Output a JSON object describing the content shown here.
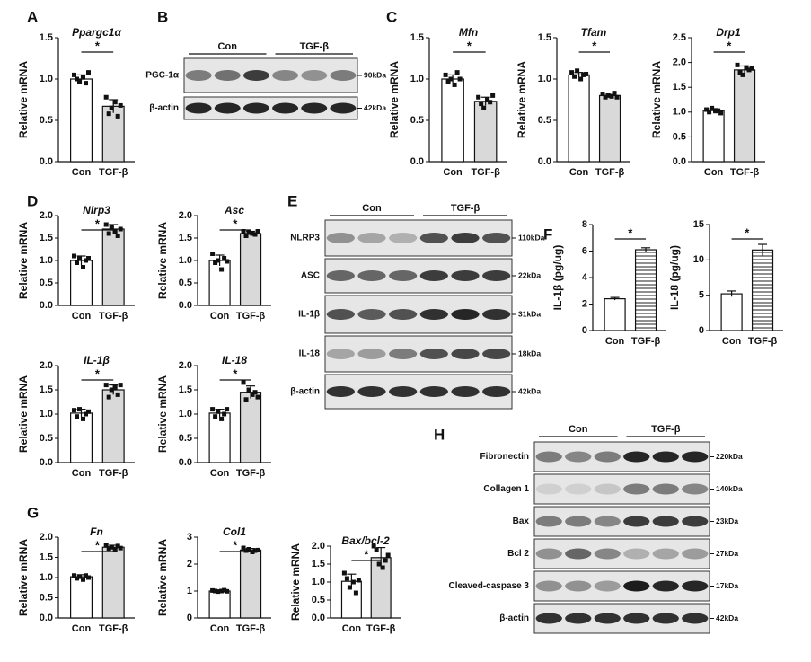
{
  "panel_labels": [
    "A",
    "B",
    "C",
    "D",
    "E",
    "F",
    "G",
    "H"
  ],
  "chart_data": [
    {
      "type": "bar",
      "title": "Ppargc1α",
      "ylabel": "Relative mRNA",
      "categories": [
        "Con",
        "TGF-β"
      ],
      "values": [
        1.0,
        0.67
      ],
      "errors": [
        0.05,
        0.08
      ],
      "points": [
        [
          1.05,
          1.0,
          0.97,
          1.02,
          0.95,
          1.08
        ],
        [
          0.78,
          0.58,
          0.65,
          0.72,
          0.55,
          0.68
        ]
      ],
      "colors": [
        "#ffffff",
        "#d9d9d9"
      ],
      "significance": "*",
      "ylim": [
        0,
        1.5
      ],
      "yticks": [
        {
          "value": 0,
          "label": "0.0"
        },
        {
          "value": 0.5,
          "label": "0.5"
        },
        {
          "value": 1,
          "label": "1.0"
        },
        {
          "value": 1.5,
          "label": "1.5"
        }
      ]
    },
    {
      "type": "bar",
      "title": "Mfn",
      "ylabel": "Relative mRNA",
      "categories": [
        "Con",
        "TGF-β"
      ],
      "values": [
        1.0,
        0.73
      ],
      "errors": [
        0.05,
        0.05
      ],
      "points": [
        [
          1.05,
          0.97,
          1.0,
          0.93,
          1.08,
          1.0
        ],
        [
          0.78,
          0.7,
          0.65,
          0.75,
          0.72,
          0.8
        ]
      ],
      "colors": [
        "#ffffff",
        "#d9d9d9"
      ],
      "significance": "*",
      "ylim": [
        0,
        1.5
      ],
      "yticks": [
        {
          "value": 0,
          "label": "0.0"
        },
        {
          "value": 0.5,
          "label": "0.5"
        },
        {
          "value": 1,
          "label": "1.0"
        },
        {
          "value": 1.5,
          "label": "1.5"
        }
      ]
    },
    {
      "type": "bar",
      "title": "Tfam",
      "ylabel": "Relative mRNA",
      "categories": [
        "Con",
        "TGF-β"
      ],
      "values": [
        1.05,
        0.8
      ],
      "errors": [
        0.03,
        0.03
      ],
      "points": [
        [
          1.08,
          1.03,
          1.1,
          1.0,
          1.05,
          1.06
        ],
        [
          0.82,
          0.78,
          0.8,
          0.79,
          0.83,
          0.78
        ]
      ],
      "colors": [
        "#ffffff",
        "#d9d9d9"
      ],
      "significance": "*",
      "ylim": [
        0,
        1.5
      ],
      "yticks": [
        {
          "value": 0,
          "label": "0.0"
        },
        {
          "value": 0.5,
          "label": "0.5"
        },
        {
          "value": 1,
          "label": "1.0"
        },
        {
          "value": 1.5,
          "label": "1.5"
        }
      ]
    },
    {
      "type": "bar",
      "title": "Drp1",
      "ylabel": "Relative mRNA",
      "categories": [
        "Con",
        "TGF-β"
      ],
      "values": [
        1.03,
        1.85
      ],
      "errors": [
        0.04,
        0.08
      ],
      "points": [
        [
          1.05,
          1.0,
          1.08,
          1.02,
          1.03,
          0.98
        ],
        [
          1.95,
          1.8,
          1.75,
          1.9,
          1.85,
          1.88
        ]
      ],
      "colors": [
        "#ffffff",
        "#d9d9d9"
      ],
      "significance": "*",
      "ylim": [
        0,
        2.5
      ],
      "yticks": [
        {
          "value": 0,
          "label": "0.0"
        },
        {
          "value": 0.5,
          "label": "0.5"
        },
        {
          "value": 1,
          "label": "1.0"
        },
        {
          "value": 1.5,
          "label": "1.5"
        },
        {
          "value": 2,
          "label": "2.0"
        },
        {
          "value": 2.5,
          "label": "2.5"
        }
      ]
    },
    {
      "type": "bar",
      "title": "Nlrp3",
      "ylabel": "Relative mRNA",
      "categories": [
        "Con",
        "TGF-β"
      ],
      "values": [
        1.0,
        1.7
      ],
      "errors": [
        0.1,
        0.1
      ],
      "points": [
        [
          1.1,
          0.95,
          1.05,
          0.85,
          1.0,
          1.05
        ],
        [
          1.8,
          1.6,
          1.75,
          1.65,
          1.55,
          1.7
        ]
      ],
      "colors": [
        "#ffffff",
        "#d9d9d9"
      ],
      "significance": "*",
      "ylim": [
        0,
        2
      ],
      "yticks": [
        {
          "value": 0,
          "label": "0.0"
        },
        {
          "value": 0.5,
          "label": "0.5"
        },
        {
          "value": 1,
          "label": "1.0"
        },
        {
          "value": 1.5,
          "label": "1.5"
        },
        {
          "value": 2,
          "label": "2.0"
        }
      ]
    },
    {
      "type": "bar",
      "title": "Asc",
      "ylabel": "Relative mRNA",
      "categories": [
        "Con",
        "TGF-β"
      ],
      "values": [
        1.0,
        1.6
      ],
      "errors": [
        0.12,
        0.05
      ],
      "points": [
        [
          1.15,
          0.95,
          1.0,
          0.8,
          1.05,
          0.98
        ],
        [
          1.65,
          1.55,
          1.62,
          1.6,
          1.58,
          1.65
        ]
      ],
      "colors": [
        "#ffffff",
        "#d9d9d9"
      ],
      "significance": "*",
      "ylim": [
        0,
        2
      ],
      "yticks": [
        {
          "value": 0,
          "label": "0.0"
        },
        {
          "value": 0.5,
          "label": "0.5"
        },
        {
          "value": 1,
          "label": "1.0"
        },
        {
          "value": 1.5,
          "label": "1.5"
        },
        {
          "value": 2,
          "label": "2.0"
        }
      ]
    },
    {
      "type": "bar",
      "title": "IL-1β",
      "ylabel": "Relative mRNA",
      "categories": [
        "Con",
        "TGF-β"
      ],
      "values": [
        1.02,
        1.5
      ],
      "errors": [
        0.08,
        0.1
      ],
      "points": [
        [
          1.08,
          0.95,
          1.1,
          0.9,
          1.0,
          1.05
        ],
        [
          1.6,
          1.35,
          1.5,
          1.55,
          1.4,
          1.6
        ]
      ],
      "colors": [
        "#ffffff",
        "#d9d9d9"
      ],
      "significance": "*",
      "ylim": [
        0,
        2
      ],
      "yticks": [
        {
          "value": 0,
          "label": "0.0"
        },
        {
          "value": 0.5,
          "label": "0.5"
        },
        {
          "value": 1,
          "label": "1.0"
        },
        {
          "value": 1.5,
          "label": "1.5"
        },
        {
          "value": 2,
          "label": "2.0"
        }
      ]
    },
    {
      "type": "bar",
      "title": "IL-18",
      "ylabel": "Relative mRNA",
      "categories": [
        "Con",
        "TGF-β"
      ],
      "values": [
        1.02,
        1.45
      ],
      "errors": [
        0.08,
        0.13
      ],
      "points": [
        [
          1.1,
          0.95,
          1.05,
          0.9,
          1.0,
          1.1
        ],
        [
          1.65,
          1.3,
          1.5,
          1.4,
          1.45,
          1.35
        ]
      ],
      "colors": [
        "#ffffff",
        "#d9d9d9"
      ],
      "significance": "*",
      "ylim": [
        0,
        2
      ],
      "yticks": [
        {
          "value": 0,
          "label": "0.0"
        },
        {
          "value": 0.5,
          "label": "0.5"
        },
        {
          "value": 1,
          "label": "1.0"
        },
        {
          "value": 1.5,
          "label": "1.5"
        },
        {
          "value": 2,
          "label": "2.0"
        }
      ]
    },
    {
      "type": "bar",
      "ylabel": "IL-1β (pg/ug)",
      "categories": [
        "Con",
        "TGF-β"
      ],
      "values": [
        2.4,
        6.1
      ],
      "errors": [
        0.1,
        0.15
      ],
      "colors": [
        "#ffffff",
        "#ffffff"
      ],
      "hatch": [
        false,
        true
      ],
      "significance": "*",
      "ylim": [
        0,
        8
      ],
      "yticks": [
        0,
        2,
        4,
        6,
        8
      ]
    },
    {
      "type": "bar",
      "ylabel": "IL-18 (pg/ug)",
      "categories": [
        "Con",
        "TGF-β"
      ],
      "values": [
        5.2,
        11.4
      ],
      "errors": [
        0.4,
        0.8
      ],
      "colors": [
        "#ffffff",
        "#ffffff"
      ],
      "hatch": [
        false,
        true
      ],
      "significance": "*",
      "ylim": [
        0,
        15
      ],
      "yticks": [
        0,
        5,
        10,
        15
      ]
    },
    {
      "type": "bar",
      "title": "Fn",
      "ylabel": "Relative mRNA",
      "categories": [
        "Con",
        "TGF-β"
      ],
      "values": [
        1.02,
        1.75
      ],
      "errors": [
        0.05,
        0.05
      ],
      "points": [
        [
          1.05,
          0.98,
          1.02,
          0.95,
          1.05,
          1.0
        ],
        [
          1.8,
          1.72,
          1.75,
          1.7,
          1.78,
          1.73
        ]
      ],
      "colors": [
        "#ffffff",
        "#d9d9d9"
      ],
      "significance": "*",
      "ylim": [
        0,
        2
      ],
      "yticks": [
        {
          "value": 0,
          "label": "0.0"
        },
        {
          "value": 0.5,
          "label": "0.5"
        },
        {
          "value": 1,
          "label": "1.0"
        },
        {
          "value": 1.5,
          "label": "1.5"
        },
        {
          "value": 2,
          "label": "2.0"
        }
      ]
    },
    {
      "type": "bar",
      "title": "Col1",
      "ylabel": "Relative mRNA",
      "categories": [
        "Con",
        "TGF-β"
      ],
      "values": [
        1.0,
        2.52
      ],
      "errors": [
        0.03,
        0.06
      ],
      "points": [
        [
          1.02,
          1.0,
          0.98,
          1.0,
          1.03,
          0.99
        ],
        [
          2.6,
          2.5,
          2.55,
          2.45,
          2.5,
          2.52
        ]
      ],
      "colors": [
        "#ffffff",
        "#d9d9d9"
      ],
      "significance": "*",
      "ylim": [
        0,
        3
      ],
      "yticks": [
        0,
        1,
        2,
        3
      ]
    },
    {
      "type": "bar",
      "title": "Bax/bcl-2",
      "ylabel": "Relative mRNA",
      "categories": [
        "Con",
        "TGF-β"
      ],
      "values": [
        1.02,
        1.68
      ],
      "errors": [
        0.2,
        0.28
      ],
      "points": [
        [
          1.25,
          1.1,
          0.85,
          1.0,
          0.7,
          1.05
        ],
        [
          2.0,
          1.9,
          1.5,
          1.4,
          1.6,
          1.75
        ]
      ],
      "colors": [
        "#ffffff",
        "#d9d9d9"
      ],
      "significance": "*",
      "ylim": [
        0,
        2
      ],
      "yticks": [
        {
          "value": 0,
          "label": "0.0"
        },
        {
          "value": 0.5,
          "label": "0.5"
        },
        {
          "value": 1,
          "label": "1.0"
        },
        {
          "value": 1.5,
          "label": "1.5"
        },
        {
          "value": 2,
          "label": "2.0"
        }
      ]
    }
  ],
  "blots": [
    {
      "groups": [
        "Con",
        "TGF-β"
      ],
      "rows": [
        {
          "label": "PGC-1α",
          "size": "90kDa"
        },
        {
          "label": "β-actin",
          "size": "42kDa"
        }
      ]
    },
    {
      "groups": [
        "Con",
        "TGF-β"
      ],
      "rows": [
        {
          "label": "NLRP3",
          "size": "110kDa"
        },
        {
          "label": "ASC",
          "size": "22kDa"
        },
        {
          "label": "IL-1β",
          "size": "31kDa"
        },
        {
          "label": "IL-18",
          "size": "18kDa"
        },
        {
          "label": "β-actin",
          "size": "42kDa"
        }
      ]
    },
    {
      "groups": [
        "Con",
        "TGF-β"
      ],
      "rows": [
        {
          "label": "Fibronectin",
          "size": "220kDa"
        },
        {
          "label": "Collagen 1",
          "size": "140kDa"
        },
        {
          "label": "Bax",
          "size": "23kDa"
        },
        {
          "label": "Bcl 2",
          "size": "27kDa"
        },
        {
          "label": "Cleaved-caspase 3",
          "size": "17kDa"
        },
        {
          "label": "β-actin",
          "size": "42kDa"
        }
      ]
    }
  ]
}
